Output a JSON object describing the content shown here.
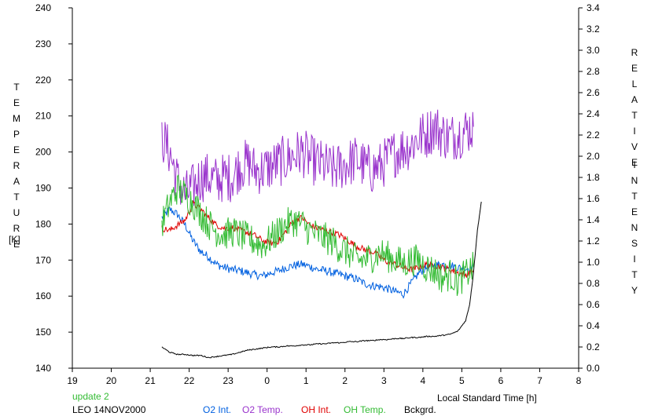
{
  "chart_data": {
    "type": "line",
    "xlabel": "Local Standard Time [h]",
    "ylabel_left_letters": [
      "T",
      "E",
      "M",
      "P",
      "E",
      "R",
      "A",
      "T",
      "U",
      "R",
      "E"
    ],
    "ylabel_left_unit": "[K]",
    "ylabel_right_letters_1": [
      "R",
      "E",
      "L",
      "A",
      "T",
      "I",
      "V",
      "E"
    ],
    "ylabel_right_letters_2": [
      "I",
      "N",
      "T",
      "E",
      "N",
      "S",
      "I",
      "T",
      "Y"
    ],
    "x_ticks": [
      19,
      20,
      21,
      22,
      23,
      0,
      1,
      2,
      3,
      4,
      5,
      6,
      7,
      8
    ],
    "x_range": [
      19,
      32
    ],
    "y_left_range": [
      140,
      240
    ],
    "y_left_ticks": [
      140,
      150,
      160,
      170,
      180,
      190,
      200,
      210,
      220,
      230,
      240
    ],
    "y_right_range": [
      0,
      3.4
    ],
    "y_right_ticks": [
      "0.0",
      "0.2",
      "0.4",
      "0.6",
      "0.8",
      "1.0",
      "1.2",
      "1.4",
      "1.6",
      "1.8",
      "2.0",
      "2.2",
      "2.4",
      "2.6",
      "2.8",
      "3.0",
      "3.2",
      "3.4"
    ],
    "notes": [
      "update 2",
      "LEO 14NOV2000"
    ],
    "grid": false,
    "legend_position": "bottom",
    "series": [
      {
        "name": "O2 Int.",
        "color": "#0060e0",
        "axis": "right",
        "x": [
          21.3,
          21.5,
          21.7,
          21.9,
          22.1,
          22.3,
          22.5,
          22.7,
          22.9,
          23.1,
          23.3,
          23.5,
          23.7,
          23.9,
          24.1,
          24.3,
          24.5,
          24.7,
          24.9,
          25.1,
          25.3,
          25.5,
          25.7,
          25.9,
          26.1,
          26.3,
          26.5,
          26.7,
          26.9,
          27.1,
          27.3,
          27.5,
          27.7,
          27.9,
          28.1,
          28.3,
          28.5,
          28.7,
          28.9,
          29.1,
          29.3
        ],
        "y": [
          1.42,
          1.5,
          1.45,
          1.35,
          1.2,
          1.1,
          1.05,
          0.98,
          0.95,
          0.93,
          0.92,
          0.9,
          0.88,
          0.87,
          0.9,
          0.92,
          0.95,
          0.97,
          0.98,
          0.96,
          0.93,
          0.92,
          0.9,
          0.88,
          0.86,
          0.84,
          0.8,
          0.78,
          0.77,
          0.75,
          0.72,
          0.7,
          0.8,
          0.9,
          0.95,
          0.97,
          0.98,
          0.97,
          0.95,
          0.94,
          0.96
        ],
        "jitter": 0.04
      },
      {
        "name": "O2 Temp.",
        "color": "#9933cc",
        "axis": "left",
        "x": [
          21.3,
          21.5,
          21.7,
          21.9,
          22.1,
          22.3,
          22.5,
          22.7,
          22.9,
          23.1,
          23.3,
          23.5,
          23.7,
          23.9,
          24.1,
          24.3,
          24.5,
          24.7,
          24.9,
          25.1,
          25.3,
          25.5,
          25.7,
          25.9,
          26.1,
          26.3,
          26.5,
          26.7,
          26.9,
          27.1,
          27.3,
          27.5,
          27.7,
          27.9,
          28.1,
          28.3,
          28.5,
          28.7,
          28.9,
          29.1,
          29.3
        ],
        "y": [
          204,
          200,
          192,
          188,
          190,
          193,
          193,
          192,
          193,
          193,
          196,
          197,
          195,
          195,
          196,
          197,
          198,
          199,
          200,
          198,
          197,
          196,
          195,
          196,
          197,
          198,
          196,
          195,
          196,
          198,
          200,
          201,
          202,
          204,
          205,
          207,
          205,
          204,
          205,
          206,
          207
        ],
        "jitter": 7
      },
      {
        "name": "OH Int.",
        "color": "#e00000",
        "axis": "right",
        "x": [
          21.3,
          21.5,
          21.7,
          21.9,
          22.1,
          22.3,
          22.5,
          22.7,
          22.9,
          23.1,
          23.3,
          23.5,
          23.7,
          23.9,
          24.1,
          24.3,
          24.5,
          24.7,
          24.9,
          25.1,
          25.3,
          25.5,
          25.7,
          25.9,
          26.1,
          26.3,
          26.5,
          26.7,
          26.9,
          27.1,
          27.3,
          27.5,
          27.7,
          27.9,
          28.1,
          28.3,
          28.5,
          28.7,
          28.9,
          29.1,
          29.3
        ],
        "y": [
          1.32,
          1.3,
          1.35,
          1.4,
          1.55,
          1.5,
          1.42,
          1.35,
          1.32,
          1.33,
          1.3,
          1.28,
          1.25,
          1.2,
          1.18,
          1.2,
          1.3,
          1.4,
          1.42,
          1.35,
          1.32,
          1.3,
          1.28,
          1.25,
          1.2,
          1.15,
          1.12,
          1.1,
          1.05,
          1.0,
          0.98,
          0.95,
          0.93,
          0.95,
          0.98,
          0.97,
          0.95,
          0.93,
          0.9,
          0.88,
          0.92
        ],
        "jitter": 0.03
      },
      {
        "name": "OH Temp.",
        "color": "#33bb33",
        "axis": "left",
        "x": [
          21.3,
          21.5,
          21.7,
          21.9,
          22.1,
          22.3,
          22.5,
          22.7,
          22.9,
          23.1,
          23.3,
          23.5,
          23.7,
          23.9,
          24.1,
          24.3,
          24.5,
          24.7,
          24.9,
          25.1,
          25.3,
          25.5,
          25.7,
          25.9,
          26.1,
          26.3,
          26.5,
          26.7,
          26.9,
          27.1,
          27.3,
          27.5,
          27.7,
          27.9,
          28.1,
          28.3,
          28.5,
          28.7,
          28.9,
          29.1,
          29.3
        ],
        "y": [
          180,
          186,
          190,
          188,
          186,
          183,
          180,
          178,
          177,
          178,
          177,
          176,
          175,
          174,
          176,
          178,
          180,
          181,
          180,
          178,
          177,
          176,
          175,
          173,
          172,
          170,
          170,
          171,
          172,
          171,
          170,
          169,
          170,
          170,
          168,
          167,
          165,
          166,
          164,
          166,
          168
        ],
        "jitter": 4.5
      },
      {
        "name": "Bckgrd.",
        "color": "#000000",
        "axis": "right",
        "x": [
          21.3,
          21.5,
          21.7,
          21.9,
          22.1,
          22.3,
          22.5,
          22.7,
          22.9,
          23.1,
          23.3,
          23.5,
          23.7,
          23.9,
          24.1,
          24.3,
          24.5,
          24.7,
          24.9,
          25.1,
          25.3,
          25.5,
          25.7,
          25.9,
          26.1,
          26.3,
          26.5,
          26.7,
          26.9,
          27.1,
          27.3,
          27.5,
          27.7,
          27.9,
          28.1,
          28.3,
          28.5,
          28.7,
          28.9,
          29.1,
          29.2,
          29.3,
          29.4,
          29.5
        ],
        "y": [
          0.2,
          0.15,
          0.13,
          0.13,
          0.12,
          0.12,
          0.1,
          0.11,
          0.12,
          0.13,
          0.15,
          0.17,
          0.18,
          0.19,
          0.2,
          0.2,
          0.21,
          0.21,
          0.22,
          0.22,
          0.23,
          0.23,
          0.24,
          0.24,
          0.25,
          0.25,
          0.26,
          0.26,
          0.27,
          0.27,
          0.28,
          0.28,
          0.29,
          0.29,
          0.3,
          0.3,
          0.31,
          0.32,
          0.35,
          0.45,
          0.6,
          0.9,
          1.3,
          1.57
        ],
        "jitter": 0.005
      }
    ]
  }
}
